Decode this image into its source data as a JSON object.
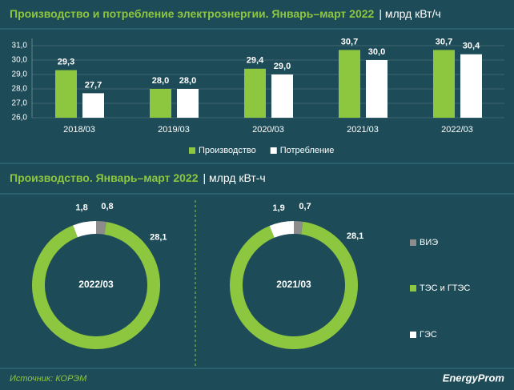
{
  "chart_data": [
    {
      "type": "bar",
      "title": "Производство и потребление электроэнергии. Январь–март 2022",
      "unit": "| млрд кВт/ч",
      "categories": [
        "2018/03",
        "2019/03",
        "2020/03",
        "2021/03",
        "2022/03"
      ],
      "series": [
        {
          "name": "Производство",
          "color": "#8dc63f",
          "values": [
            29.3,
            28.0,
            29.4,
            30.7,
            30.7
          ],
          "value_labels": [
            "29,3",
            "28,0",
            "29,4",
            "30,7",
            "30,7"
          ]
        },
        {
          "name": "Потребление",
          "color": "#ffffff",
          "values": [
            27.7,
            28.0,
            29.0,
            30.0,
            30.4
          ],
          "value_labels": [
            "27,7",
            "28,0",
            "29,0",
            "30,0",
            "30,4"
          ]
        }
      ],
      "ylim": [
        26,
        31.5
      ],
      "yticks": [
        {
          "value": 26,
          "label": "26,0"
        },
        {
          "value": 27,
          "label": "27,0"
        },
        {
          "value": 28,
          "label": "28,0"
        },
        {
          "value": 29,
          "label": "29,0"
        },
        {
          "value": 30,
          "label": "30,0"
        },
        {
          "value": 31,
          "label": "31,0"
        }
      ],
      "grid": true
    },
    {
      "type": "donut",
      "title": "Производство. Январь–март 2022",
      "unit": "| млрд кВт-ч",
      "categories": [
        "ВИЭ",
        "ТЭС и ГТЭС",
        "ГЭС"
      ],
      "colors": [
        "#8c8c8c",
        "#8dc63f",
        "#ffffff"
      ],
      "series": [
        {
          "name": "2022/03",
          "values": [
            0.8,
            28.1,
            1.8
          ],
          "value_labels": [
            "0,8",
            "28,1",
            "1,8"
          ]
        },
        {
          "name": "2021/03",
          "values": [
            0.7,
            28.1,
            1.9
          ],
          "value_labels": [
            "0,7",
            "28,1",
            "1,9"
          ]
        }
      ]
    }
  ],
  "source": "Источник: КОРЭМ",
  "logo": "EnergyProm"
}
